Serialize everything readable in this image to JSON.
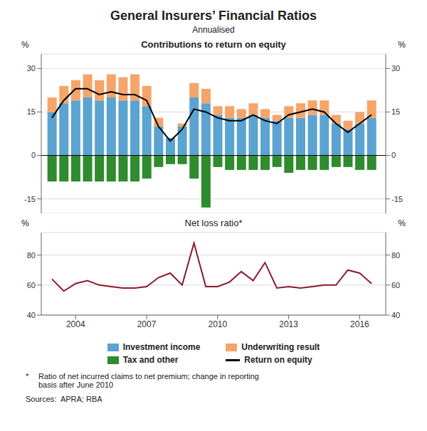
{
  "title": "General Insurers’ Financial Ratios",
  "subtitle": "Annualised",
  "annotations": [
    "*",
    "Ratio of net incurred claims to net premium; change in reporting\nbasis after June 2010",
    "Sources:  APRA; RBA"
  ],
  "chart_data": [
    {
      "type": "bar",
      "title": "Contributions to return on equity",
      "stacked": true,
      "grid": true,
      "tick_labels": "y",
      "ylabel": "%",
      "y2label": "%",
      "x": [
        2003.0,
        2003.5,
        2004.0,
        2004.5,
        2005.0,
        2005.5,
        2006.0,
        2006.5,
        2007.0,
        2007.5,
        2008.0,
        2008.5,
        2009.0,
        2009.5,
        2010.0,
        2010.5,
        2011.0,
        2011.5,
        2012.0,
        2012.5,
        2013.0,
        2013.5,
        2014.0,
        2014.5,
        2015.0,
        2015.5,
        2016.0,
        2016.5
      ],
      "xlim": [
        2002.55,
        2017.1
      ],
      "ylim": [
        -20,
        35
      ],
      "yticks": [
        -15,
        0,
        15,
        30
      ],
      "y2lim": [
        -20,
        35
      ],
      "y2ticks": [
        -15,
        0,
        15,
        30
      ],
      "series": [
        {
          "name": "Investment income",
          "type": "bar",
          "color": "#5BA3D0",
          "values": [
            15,
            18,
            19,
            20,
            19,
            20,
            19,
            19,
            17,
            10,
            6,
            10,
            20,
            18,
            14,
            13,
            13,
            14,
            13,
            12,
            13,
            13,
            14,
            14,
            11,
            9,
            11,
            13
          ]
        },
        {
          "name": "Underwriting result",
          "type": "bar",
          "color": "#F5A46A",
          "values": [
            5,
            6,
            7,
            8,
            7,
            8,
            8,
            9,
            7,
            3,
            0,
            1,
            5,
            5,
            3,
            4,
            3,
            4,
            3,
            2,
            4,
            5,
            5,
            5,
            3,
            3,
            4,
            6
          ]
        },
        {
          "name": "Tax and other",
          "type": "bar",
          "color": "#2E8B2E",
          "values": [
            -9,
            -9,
            -9,
            -9,
            -9,
            -9,
            -9,
            -9,
            -8,
            -4,
            -3,
            -3,
            -8,
            -18,
            -4,
            -5,
            -5,
            -5,
            -5,
            -4,
            -6,
            -5,
            -5,
            -5,
            -4,
            -4,
            -5,
            -5
          ]
        },
        {
          "name": "Return on equity",
          "type": "line",
          "color": "#000000",
          "values": [
            13,
            19,
            23,
            23,
            21,
            22,
            21,
            21,
            19,
            10,
            5,
            9,
            16,
            15,
            13,
            12,
            12,
            14,
            12,
            11,
            14,
            15,
            16,
            15,
            11,
            8,
            11,
            14
          ]
        }
      ]
    },
    {
      "type": "line",
      "title": "Net loss ratio*",
      "grid": true,
      "ylabel": "%",
      "y2label": "%",
      "x": [
        2003.0,
        2003.5,
        2004.0,
        2004.5,
        2005.0,
        2005.5,
        2006.0,
        2006.5,
        2007.0,
        2007.5,
        2008.0,
        2008.5,
        2009.0,
        2009.5,
        2010.0,
        2010.5,
        2011.0,
        2011.5,
        2012.0,
        2012.5,
        2013.0,
        2013.5,
        2014.0,
        2014.5,
        2015.0,
        2015.5,
        2016.0,
        2016.5
      ],
      "xlim": [
        2002.55,
        2017.1
      ],
      "xticks": [
        2004,
        2007,
        2010,
        2013,
        2016
      ],
      "ylim": [
        40,
        95
      ],
      "yticks": [
        40,
        60,
        80
      ],
      "y2lim": [
        40,
        95
      ],
      "y2ticks": [
        40,
        60,
        80
      ],
      "color": "#8B1A2B",
      "values": [
        64,
        56,
        61,
        63,
        60,
        59,
        58,
        58,
        59,
        65,
        68,
        60,
        88,
        59,
        59,
        62,
        69,
        63,
        75,
        58,
        59,
        58,
        59,
        60,
        60,
        70,
        68,
        61
      ]
    }
  ]
}
